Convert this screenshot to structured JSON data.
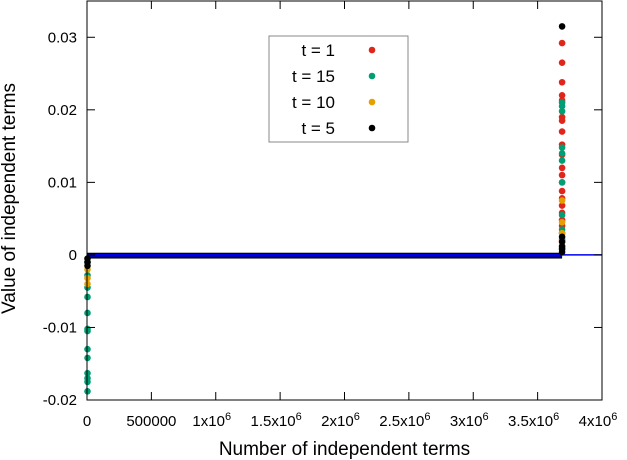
{
  "chart_data": {
    "type": "scatter",
    "xlabel": "Number of independent terms",
    "ylabel": "Value of independent terms",
    "xlim": [
      0,
      4000000
    ],
    "ylim": [
      -0.02,
      0.035
    ],
    "grid": false,
    "legend_placement": "top-center",
    "x_ticks": [
      {
        "value": 0,
        "label": "0"
      },
      {
        "value": 500000,
        "label": "500000"
      },
      {
        "value": 1000000,
        "label": "1x10",
        "exp": "6"
      },
      {
        "value": 1500000,
        "label": "1.5x10",
        "exp": "6"
      },
      {
        "value": 2000000,
        "label": "2x10",
        "exp": "6"
      },
      {
        "value": 2500000,
        "label": "2.5x10",
        "exp": "6"
      },
      {
        "value": 3000000,
        "label": "3x10",
        "exp": "6"
      },
      {
        "value": 3500000,
        "label": "3.5x10",
        "exp": "6"
      },
      {
        "value": 4000000,
        "label": "4x10",
        "exp": "6"
      }
    ],
    "y_ticks": [
      {
        "value": -0.02,
        "label": "-0.02"
      },
      {
        "value": -0.01,
        "label": "-0.01"
      },
      {
        "value": 0,
        "label": "0"
      },
      {
        "value": 0.01,
        "label": "0.01"
      },
      {
        "value": 0.02,
        "label": "0.02"
      },
      {
        "value": 0.03,
        "label": "0.03"
      }
    ],
    "reference_line": {
      "y": 0,
      "color": "#0000ee"
    },
    "band": {
      "x_range": [
        0,
        3690000
      ],
      "y_range": [
        -0.0005,
        0.0003
      ],
      "color": "#0000aa"
    },
    "series": [
      {
        "name": "t = 1",
        "color": "#e0251b",
        "points": [
          [
            3690000,
            0.0292
          ],
          [
            3690000,
            0.0265
          ],
          [
            3690000,
            0.0238
          ],
          [
            3690000,
            0.022
          ],
          [
            3690000,
            0.0213
          ],
          [
            3690000,
            0.019
          ],
          [
            3690000,
            0.0185
          ],
          [
            3690000,
            0.017
          ],
          [
            3690000,
            0.0152
          ],
          [
            3690000,
            0.0138
          ],
          [
            3690000,
            0.012
          ],
          [
            3690000,
            0.011
          ],
          [
            3690000,
            0.01
          ],
          [
            3690000,
            0.0088
          ],
          [
            3690000,
            0.0078
          ],
          [
            3690000,
            0.0068
          ],
          [
            3690000,
            0.0058
          ],
          [
            3690000,
            0.0048
          ],
          [
            3690000,
            0.004
          ],
          [
            3690000,
            0.003
          ],
          [
            3690000,
            0.002
          ]
        ]
      },
      {
        "name": "t = 15",
        "color": "#009e73",
        "points": [
          [
            3690000,
            0.021
          ],
          [
            3690000,
            0.0205
          ],
          [
            3690000,
            0.0198
          ],
          [
            3690000,
            0.0148
          ],
          [
            3690000,
            0.014
          ],
          [
            3690000,
            0.013
          ],
          [
            3690000,
            0.01
          ],
          [
            3690000,
            0.0055
          ],
          [
            3690000,
            0.0035
          ],
          [
            3690000,
            0.0022
          ],
          [
            3690000,
            0.001
          ],
          [
            0,
            -0.001
          ],
          [
            0,
            -0.0028
          ],
          [
            0,
            -0.0045
          ],
          [
            0,
            -0.0058
          ],
          [
            0,
            -0.008
          ],
          [
            0,
            -0.0102
          ],
          [
            0,
            -0.0105
          ],
          [
            0,
            -0.013
          ],
          [
            0,
            -0.0142
          ],
          [
            0,
            -0.0163
          ],
          [
            0,
            -0.017
          ],
          [
            0,
            -0.0175
          ],
          [
            0,
            -0.0188
          ]
        ]
      },
      {
        "name": "t = 10",
        "color": "#e69f00",
        "points": [
          [
            3690000,
            0.0075
          ],
          [
            3690000,
            0.0045
          ],
          [
            3690000,
            0.003
          ],
          [
            3690000,
            0.0018
          ],
          [
            0,
            -0.002
          ],
          [
            0,
            -0.0032
          ],
          [
            0,
            -0.004
          ]
        ]
      },
      {
        "name": "t = 5",
        "color": "#000000",
        "points": [
          [
            3690000,
            0.0315
          ],
          [
            3690000,
            0.0025
          ],
          [
            3690000,
            0.0018
          ],
          [
            3690000,
            0.0012
          ],
          [
            3690000,
            0.0008
          ],
          [
            3690000,
            0.0004
          ],
          [
            0,
            -0.0005
          ],
          [
            0,
            -0.001
          ],
          [
            0,
            -0.0015
          ]
        ]
      }
    ]
  }
}
